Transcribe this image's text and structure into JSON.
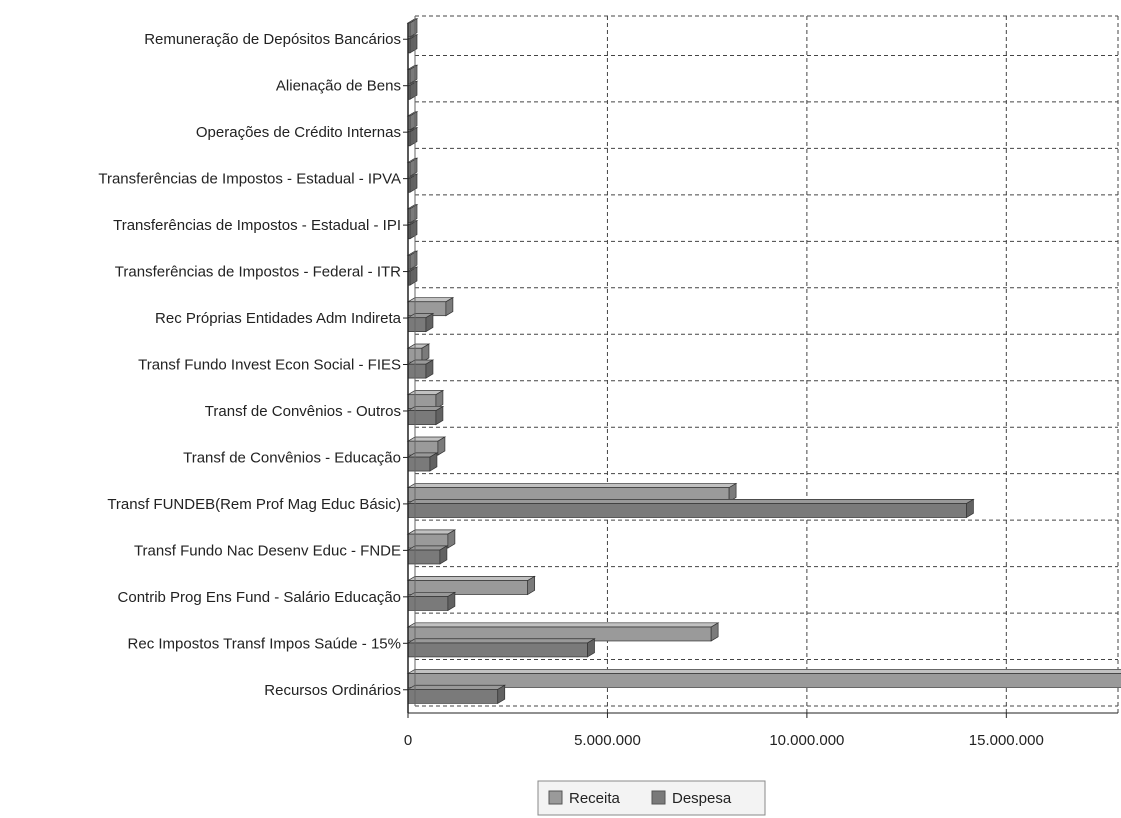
{
  "chart_data": {
    "type": "bar",
    "orientation": "horizontal",
    "categories": [
      "Remuneração de Depósitos Bancários",
      "Alienação de Bens",
      "Operações de Crédito Internas",
      "Transferências de Impostos - Estadual - IPVA",
      "Transferências de Impostos - Estadual - IPI",
      "Transferências de Impostos - Federal - ITR",
      "Rec Próprias Entidades Adm Indireta",
      "Transf Fundo Invest Econ Social - FIES",
      "Transf de Convênios - Outros",
      "Transf de Convênios - Educação",
      "Transf FUNDEB(Rem Prof Mag Educ Básic)",
      "Transf Fundo Nac Desenv Educ - FNDE",
      "Contrib Prog Ens Fund - Salário Educação",
      "Rec Impostos Transf Impos Saúde - 15%",
      "Recursos Ordinários"
    ],
    "series": [
      {
        "name": "Receita",
        "color": "#9a9a9a",
        "values": [
          10000,
          0,
          0,
          0,
          0,
          0,
          950000,
          350000,
          700000,
          750000,
          8050000,
          1000000,
          3000000,
          7600000,
          18300000
        ]
      },
      {
        "name": "Despesa",
        "color": "#7a7a7a",
        "values": [
          0,
          0,
          0,
          0,
          0,
          0,
          450000,
          450000,
          700000,
          550000,
          14000000,
          800000,
          1000000,
          4500000,
          2250000
        ]
      }
    ],
    "ticks": [
      "0",
      "5.000.000",
      "10.000.000",
      "15.000.000"
    ],
    "tick_values": [
      0,
      5000000,
      10000000,
      15000000
    ],
    "xlim": [
      0,
      17800000
    ],
    "grid": true,
    "legend_position": "bottom-center"
  }
}
